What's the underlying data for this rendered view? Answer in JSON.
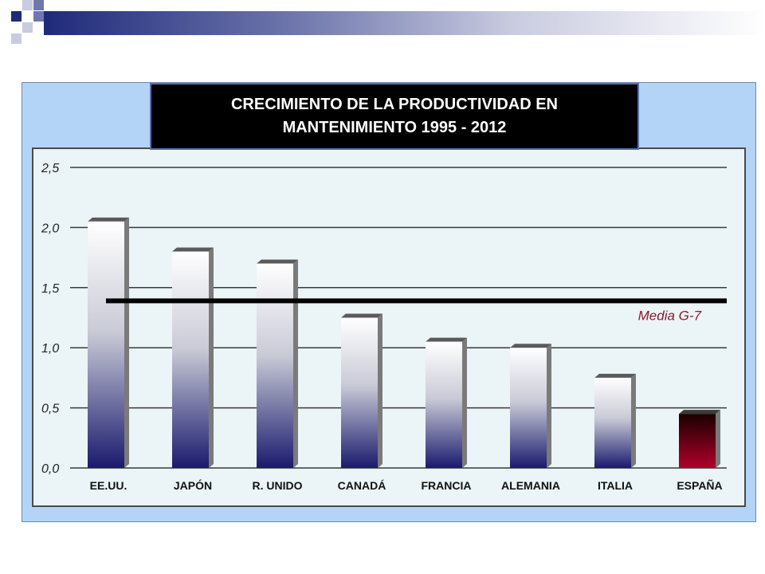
{
  "slide": {
    "accent_dark": "#1f2a7a",
    "accent_mid": "#6f77ad",
    "frame_color": "#b3d4f7",
    "panel_color": "#ebf4f6"
  },
  "chart_data": {
    "type": "bar",
    "title": "CRECIMIENTO DE LA PRODUCTIVIDAD EN\nMANTENIMIENTO  1995 - 2012",
    "xlabel": "",
    "ylabel": "",
    "categories": [
      "EE.UU.",
      "JAPÓN",
      "R. UNIDO",
      "CANADÁ",
      "FRANCIA",
      "ALEMANIA",
      "ITALIA",
      "ESPAÑA"
    ],
    "series": [
      {
        "values": [
          2.05,
          1.8,
          1.7,
          1.25,
          1.05,
          1.0,
          0.75,
          0.45
        ]
      }
    ],
    "ylim": [
      0,
      2.5
    ],
    "yticks": [
      "0,0",
      "0,5",
      "1,0",
      "1,5",
      "2,0",
      "2,5"
    ],
    "grid": true,
    "legend": "none",
    "reference_line": {
      "label": "Media G-7",
      "value": 1.39
    },
    "colors": {
      "bar_top": "#ffffff",
      "bar_bottom": "#1a1a6e",
      "highlight_top": "#1a0000",
      "highlight_bottom": "#b0002a",
      "reference_label": "#8b1a2e",
      "side": "#7a7a7a"
    },
    "highlight_index": 7
  }
}
